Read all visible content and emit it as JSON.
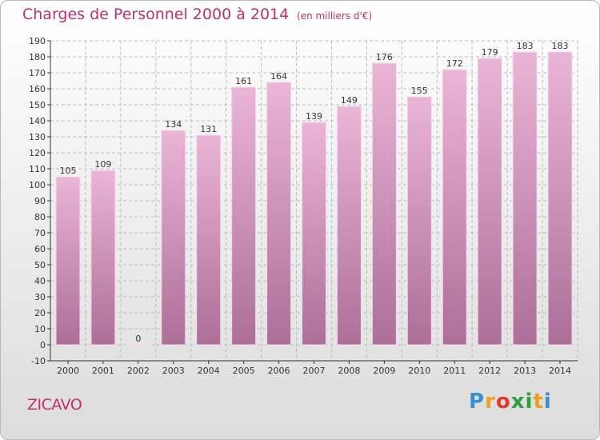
{
  "header": {
    "title": "Charges de Personnel 2000 à 2014",
    "subtitle": "(en milliers d'€)"
  },
  "footer": {
    "commune": "ZICAVO",
    "logo": {
      "letters": [
        "P",
        "r",
        "o",
        "x",
        "i",
        "t",
        "i"
      ],
      "colors": [
        "#3a8fd0",
        "#f0a020",
        "#e23a2a",
        "#2f9f3f",
        "#2f9f3f",
        "#e8a020",
        "#3a8fd0"
      ]
    }
  },
  "colors": {
    "bar_light": "#eab5d7",
    "bar_dark": "#ad6f98",
    "bar_edge": "#f6d9ea",
    "text_accent": "#c0306a",
    "axis": "#333333",
    "grid": "#bdbdbd"
  },
  "chart_data": {
    "type": "bar",
    "title": "Charges de Personnel 2000 à 2014",
    "subtitle": "(en milliers d'€)",
    "categories": [
      "2000",
      "2001",
      "2002",
      "2003",
      "2004",
      "2005",
      "2006",
      "2007",
      "2008",
      "2009",
      "2010",
      "2011",
      "2012",
      "2013",
      "2014"
    ],
    "values": [
      105,
      109,
      0,
      134,
      131,
      161,
      164,
      139,
      149,
      176,
      155,
      172,
      179,
      183,
      183
    ],
    "ylim": [
      -10,
      190
    ],
    "yticks": [
      -10,
      0,
      10,
      20,
      30,
      40,
      50,
      60,
      70,
      80,
      90,
      100,
      110,
      120,
      130,
      140,
      150,
      160,
      170,
      180,
      190
    ],
    "grid": true,
    "data_labels": true
  }
}
